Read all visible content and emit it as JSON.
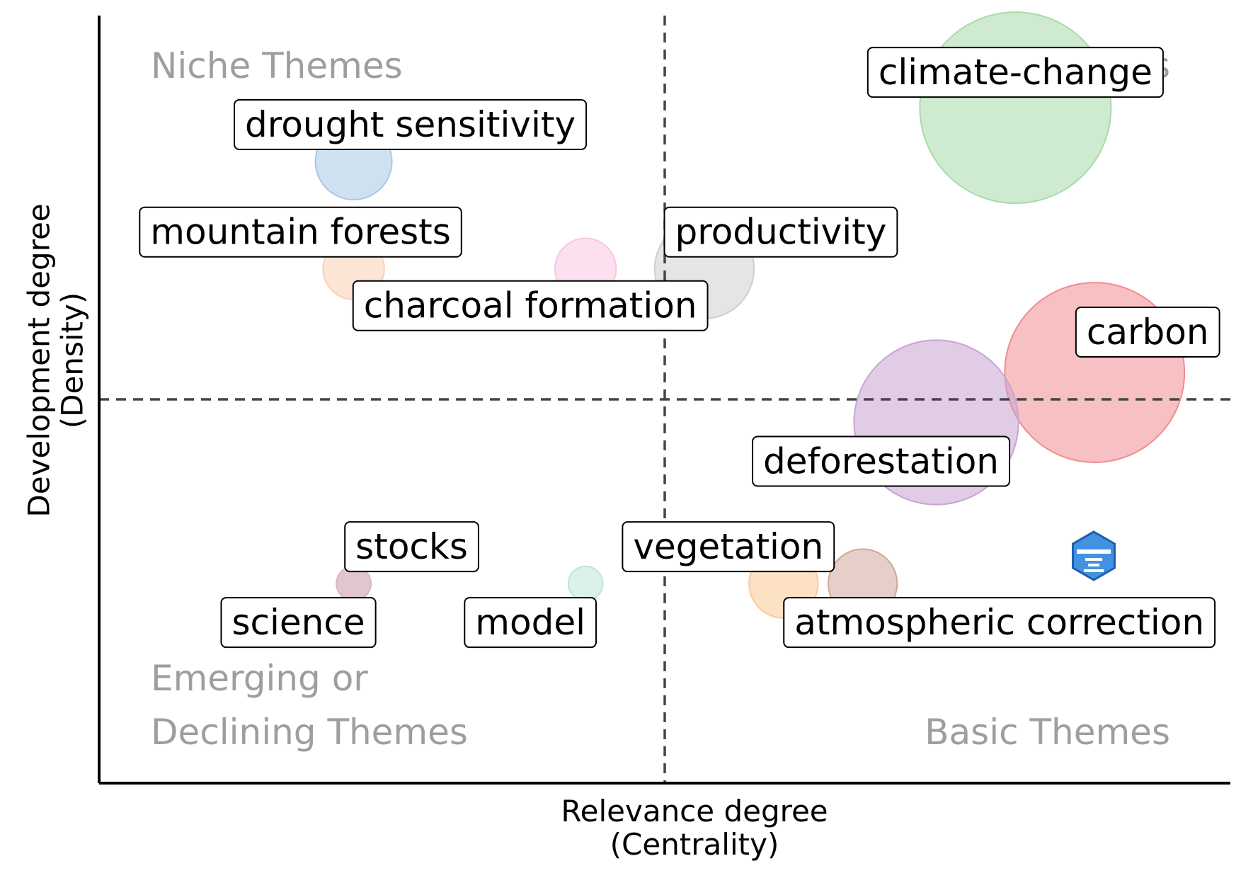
{
  "chart_data": {
    "type": "scatter",
    "subtype": "thematic-map",
    "title": "",
    "xlabel": [
      "Relevance degree",
      "(Centrality)"
    ],
    "ylabel": [
      "Development degree",
      "(Density)"
    ],
    "xlim": [
      0,
      1
    ],
    "ylim": [
      0,
      1
    ],
    "x_divider": 0.5,
    "y_divider": 0.5,
    "grid": false,
    "quadrants": {
      "top_left": [
        "Niche Themes"
      ],
      "top_right": [
        "Motor Themes"
      ],
      "bottom_left": [
        "Emerging or",
        "Declining Themes"
      ],
      "bottom_right": [
        "Basic Themes"
      ]
    },
    "points": [
      {
        "label": "climate-change",
        "x": 0.81,
        "y": 0.88,
        "size": 1.0,
        "color": "#a8dba8"
      },
      {
        "label": "carbon",
        "x": 0.88,
        "y": 0.535,
        "size": 0.94,
        "color": "#f08d91"
      },
      {
        "label": "deforestation",
        "x": 0.74,
        "y": 0.47,
        "size": 0.86,
        "color": "#c9a3d2"
      },
      {
        "label": "productivity",
        "x": 0.535,
        "y": 0.67,
        "size": 0.52,
        "color": "#cfcfcf"
      },
      {
        "label": "drought sensitivity",
        "x": 0.225,
        "y": 0.81,
        "size": 0.4,
        "color": "#a8c8e6"
      },
      {
        "label": "mountain forests",
        "x": 0.225,
        "y": 0.67,
        "size": 0.32,
        "color": "#fcd0b4"
      },
      {
        "label": "charcoal formation",
        "x": 0.43,
        "y": 0.67,
        "size": 0.32,
        "color": "#f9c6e3"
      },
      {
        "label": "atmospheric correction",
        "x": 0.675,
        "y": 0.26,
        "size": 0.36,
        "color": "#cfa79a"
      },
      {
        "label": "vegetation",
        "x": 0.605,
        "y": 0.26,
        "size": 0.36,
        "color": "#fcc896"
      },
      {
        "label": "stocks",
        "x": 0.225,
        "y": 0.26,
        "size": 0.18,
        "color": "#d8b8c4"
      },
      {
        "label": "science",
        "x": 0.225,
        "y": 0.26,
        "size": 0.18,
        "color": "#d8b8c4"
      },
      {
        "label": "model",
        "x": 0.43,
        "y": 0.26,
        "size": 0.18,
        "color": "#bfe5d5"
      }
    ],
    "watermark": {
      "icon": "bibliometrix-logo-icon",
      "color": "#2e86de"
    }
  }
}
